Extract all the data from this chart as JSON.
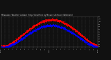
{
  "title": "Milwaukee Weather Outdoor Temp / Dew Point  by Minute  (24 Hours) (Alternate)",
  "background_color": "#111111",
  "plot_bg_color": "#111111",
  "grid_color": "#555555",
  "temp_color": "#ff0000",
  "dew_color": "#0000ff",
  "ylabel_color": "#cccccc",
  "xlabel_color": "#cccccc",
  "title_color": "#cccccc",
  "ylim": [
    20,
    80
  ],
  "xlim": [
    0,
    1440
  ],
  "vgrid_positions": [
    0,
    60,
    120,
    180,
    240,
    300,
    360,
    420,
    480,
    540,
    600,
    660,
    720,
    780,
    840,
    900,
    960,
    1020,
    1080,
    1140,
    1200,
    1260,
    1320,
    1380,
    1440
  ],
  "xtick_labels": [
    "12AM",
    "1",
    "2",
    "3",
    "4",
    "5",
    "6",
    "7",
    "8",
    "9",
    "10",
    "11",
    "12PM",
    "1",
    "2",
    "3",
    "4",
    "5",
    "6",
    "7",
    "8",
    "9",
    "10",
    "11",
    "12AM"
  ],
  "ytick_vals": [
    80,
    75,
    70,
    65,
    60,
    55,
    50,
    45,
    40,
    35,
    30,
    25,
    20
  ]
}
